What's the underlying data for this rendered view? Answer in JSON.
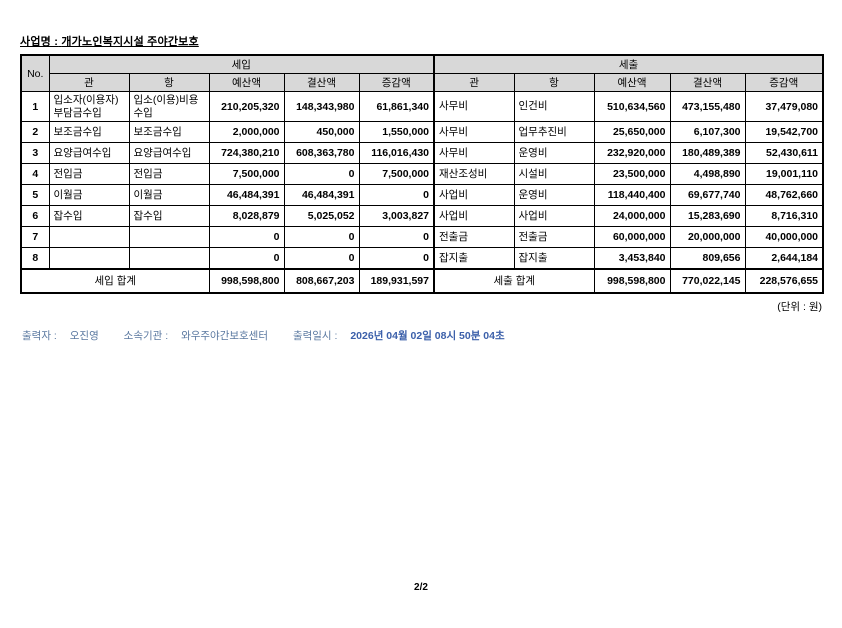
{
  "page": {
    "title_label": "사업명 :",
    "title_value": "개가노인복지시설 주야간보호",
    "unit_note": "(단위 : 원)",
    "page_number": "2/2"
  },
  "colors": {
    "header_bg": "#d8d8d8",
    "table_border": "#000000",
    "footer_text": "#5a78a0",
    "footer_date": "#3c60aa"
  },
  "table": {
    "no_header": "No.",
    "groups": [
      {
        "label": "세입"
      },
      {
        "label": "세출"
      }
    ],
    "sub_headers": [
      "관",
      "항",
      "예산액",
      "결산액",
      "증감액"
    ],
    "rows": [
      {
        "no": "1",
        "in": [
          "입소자(이용자) 부담금수입",
          "입소(이용)비용 수입",
          "210,205,320",
          "148,343,980",
          "61,861,340"
        ],
        "out": [
          "사무비",
          "인건비",
          "510,634,560",
          "473,155,480",
          "37,479,080"
        ]
      },
      {
        "no": "2",
        "in": [
          "보조금수입",
          "보조금수입",
          "2,000,000",
          "450,000",
          "1,550,000"
        ],
        "out": [
          "사무비",
          "업무추진비",
          "25,650,000",
          "6,107,300",
          "19,542,700"
        ]
      },
      {
        "no": "3",
        "in": [
          "요양급여수입",
          "요양급여수입",
          "724,380,210",
          "608,363,780",
          "116,016,430"
        ],
        "out": [
          "사무비",
          "운영비",
          "232,920,000",
          "180,489,389",
          "52,430,611"
        ]
      },
      {
        "no": "4",
        "in": [
          "전입금",
          "전입금",
          "7,500,000",
          "0",
          "7,500,000"
        ],
        "out": [
          "재산조성비",
          "시설비",
          "23,500,000",
          "4,498,890",
          "19,001,110"
        ]
      },
      {
        "no": "5",
        "in": [
          "이월금",
          "이월금",
          "46,484,391",
          "46,484,391",
          "0"
        ],
        "out": [
          "사업비",
          "운영비",
          "118,440,400",
          "69,677,740",
          "48,762,660"
        ]
      },
      {
        "no": "6",
        "in": [
          "잡수입",
          "잡수입",
          "8,028,879",
          "5,025,052",
          "3,003,827"
        ],
        "out": [
          "사업비",
          "사업비",
          "24,000,000",
          "15,283,690",
          "8,716,310"
        ]
      },
      {
        "no": "7",
        "in": [
          "",
          "",
          "0",
          "0",
          "0"
        ],
        "out": [
          "전출금",
          "전출금",
          "60,000,000",
          "20,000,000",
          "40,000,000"
        ]
      },
      {
        "no": "8",
        "in": [
          "",
          "",
          "0",
          "0",
          "0"
        ],
        "out": [
          "잡지출",
          "잡지출",
          "3,453,840",
          "809,656",
          "2,644,184"
        ]
      }
    ],
    "totals": {
      "in_label": "세입 합계",
      "in": [
        "998,598,800",
        "808,667,203",
        "189,931,597"
      ],
      "out_label": "세출 합계",
      "out": [
        "998,598,800",
        "770,022,145",
        "228,576,655"
      ]
    }
  },
  "footer": {
    "printer_label": "출력자 :",
    "printer": "오진영",
    "org_label": "소속기관 :",
    "org": "와우주야간보호센터",
    "datetime_label": "출력일시 :",
    "datetime": "2026년 04월 02일 08시 50분 04초"
  }
}
